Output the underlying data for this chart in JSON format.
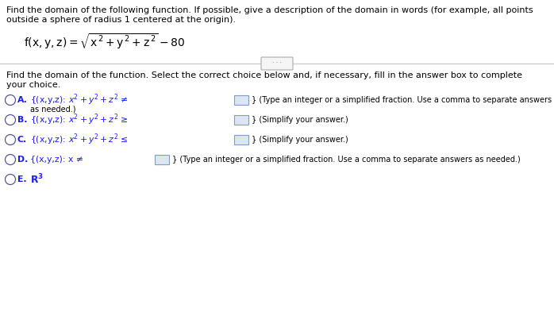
{
  "bg_color": "#ffffff",
  "text_color": "#000000",
  "blue_color": "#1a1aff",
  "black_color": "#000000",
  "title_line1": "Find the domain of the following function. If possible, give a description of the domain in words (for example, all points",
  "title_line2": "outside a sphere of radius 1 centered at the origin).",
  "second_title_line1": "Find the domain of the function. Select the correct choice below and, if necessary, fill in the answer box to complete",
  "second_title_line2": "your choice.",
  "choice_A_formula": "{(x,y,z): x² + y² + z² ≠",
  "choice_A_suffix1": "} (Type an integer or a simplified fraction. Use a comma to separate answers",
  "choice_A_suffix2": "as needed.)",
  "choice_B_formula": "{(x,y,z): x² + y² + z² ≥",
  "choice_B_suffix": "} (Simplify your answer.)",
  "choice_C_formula": "{(x,y,z): x² + y² + z² ≤",
  "choice_C_suffix": "} (Simplify your answer.)",
  "choice_D_formula": "{(x,y,z): x ≠",
  "choice_D_suffix": "} (Type an integer or a simplified fraction. Use a comma to separate answers as needed.)",
  "choice_E_formula": "R³",
  "divider_color": "#cccccc",
  "circle_color": "#555599",
  "box_fill": "#dce6f1",
  "box_edge": "#7f9fbf"
}
